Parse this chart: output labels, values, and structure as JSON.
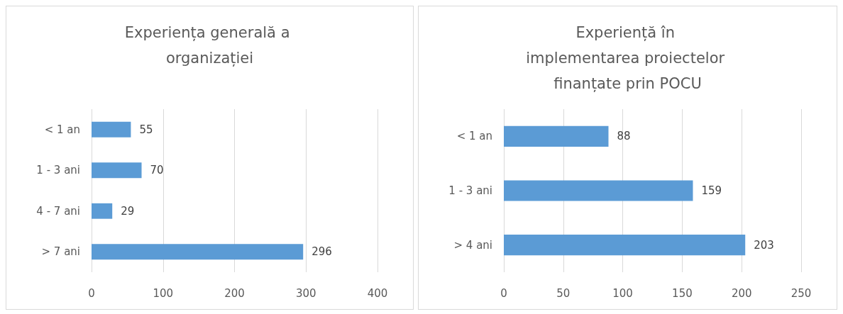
{
  "chart_data": [
    {
      "type": "bar",
      "orientation": "horizontal",
      "title": "Experiența generală a organizației",
      "categories": [
        "< 1 an",
        "1 - 3 ani",
        "4 - 7 ani",
        "> 7 ani"
      ],
      "values": [
        55,
        70,
        29,
        296
      ],
      "color": "#5b9bd5",
      "xlim": [
        0,
        400
      ],
      "xticks": [
        0,
        100,
        200,
        300,
        400
      ],
      "grid": "x",
      "data_labels": true
    },
    {
      "type": "bar",
      "orientation": "horizontal",
      "title": "Experiență în implementarea proiectelor finanțate prin POCU",
      "categories": [
        "< 1 an",
        "1 - 3 ani",
        "> 4 ani"
      ],
      "values": [
        88,
        159,
        203
      ],
      "color": "#5b9bd5",
      "xlim": [
        0,
        250
      ],
      "xticks": [
        0,
        50,
        100,
        150,
        200,
        250
      ],
      "grid": "x",
      "data_labels": true
    }
  ]
}
